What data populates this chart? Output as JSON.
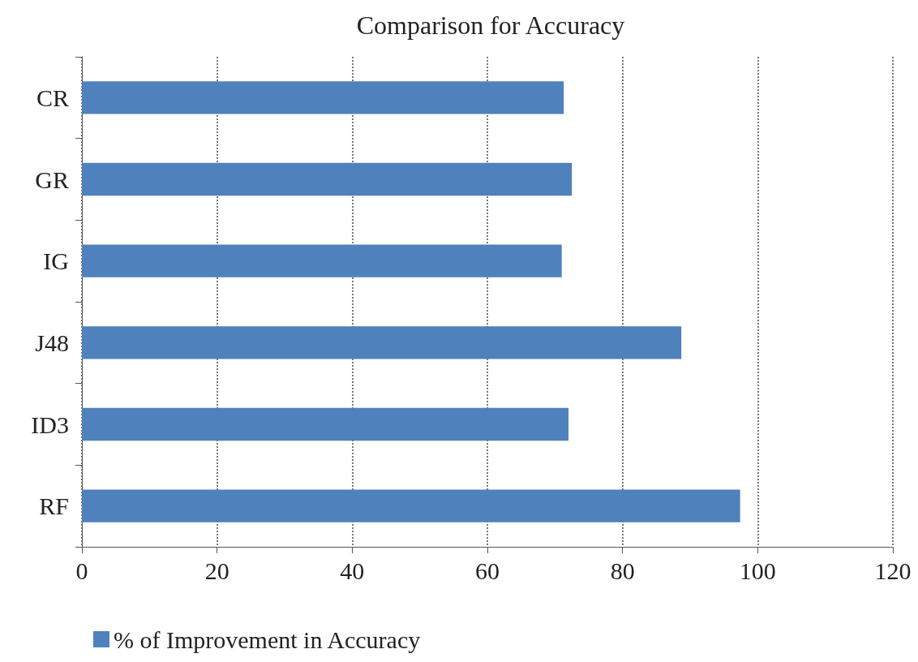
{
  "chart_data": {
    "type": "bar",
    "orientation": "horizontal",
    "title": "Comparison for Accuracy",
    "categories": [
      "CR",
      "GR",
      "IG",
      "J48",
      "ID3",
      "RF"
    ],
    "series": [
      {
        "name": "% of Improvement in Accuracy",
        "color": "#4f81bd",
        "values": [
          71.3,
          72.5,
          71.0,
          88.7,
          72.0,
          97.4
        ]
      }
    ],
    "xlim": [
      0,
      120
    ],
    "xticks": [
      0,
      20,
      40,
      60,
      80,
      100,
      120
    ],
    "grid": "x",
    "legend": "bottom left"
  }
}
